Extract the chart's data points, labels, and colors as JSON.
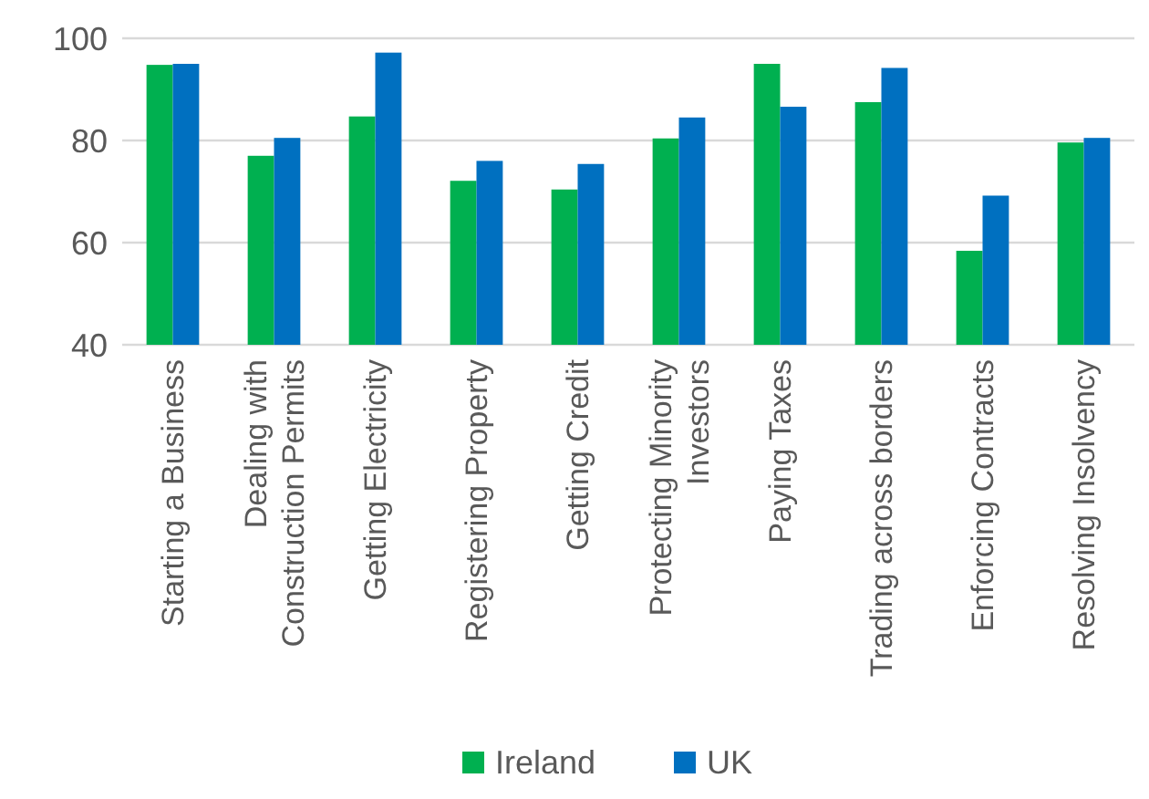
{
  "chart_data": {
    "type": "bar",
    "categories": [
      "Starting a Business",
      "Dealing with Construction Permits",
      "Getting Electricity",
      "Registering Property",
      "Getting Credit",
      "Protecting Minority Investors",
      "Paying Taxes",
      "Trading across borders",
      "Enforcing Contracts",
      "Resolving Insolvency"
    ],
    "series": [
      {
        "name": "Ireland",
        "color": "#00b050",
        "values": [
          94.8,
          77,
          84.7,
          72.1,
          70.4,
          80.4,
          95,
          87.5,
          58.4,
          79.6
        ]
      },
      {
        "name": "UK",
        "color": "#0070c0",
        "values": [
          95,
          80.5,
          97.2,
          76,
          75.4,
          84.5,
          86.6,
          94.2,
          69.2,
          80.5
        ]
      }
    ],
    "ylim": [
      40,
      100
    ],
    "yticks": [
      40,
      60,
      80,
      100
    ],
    "grid": "y",
    "legend": "bottom"
  }
}
